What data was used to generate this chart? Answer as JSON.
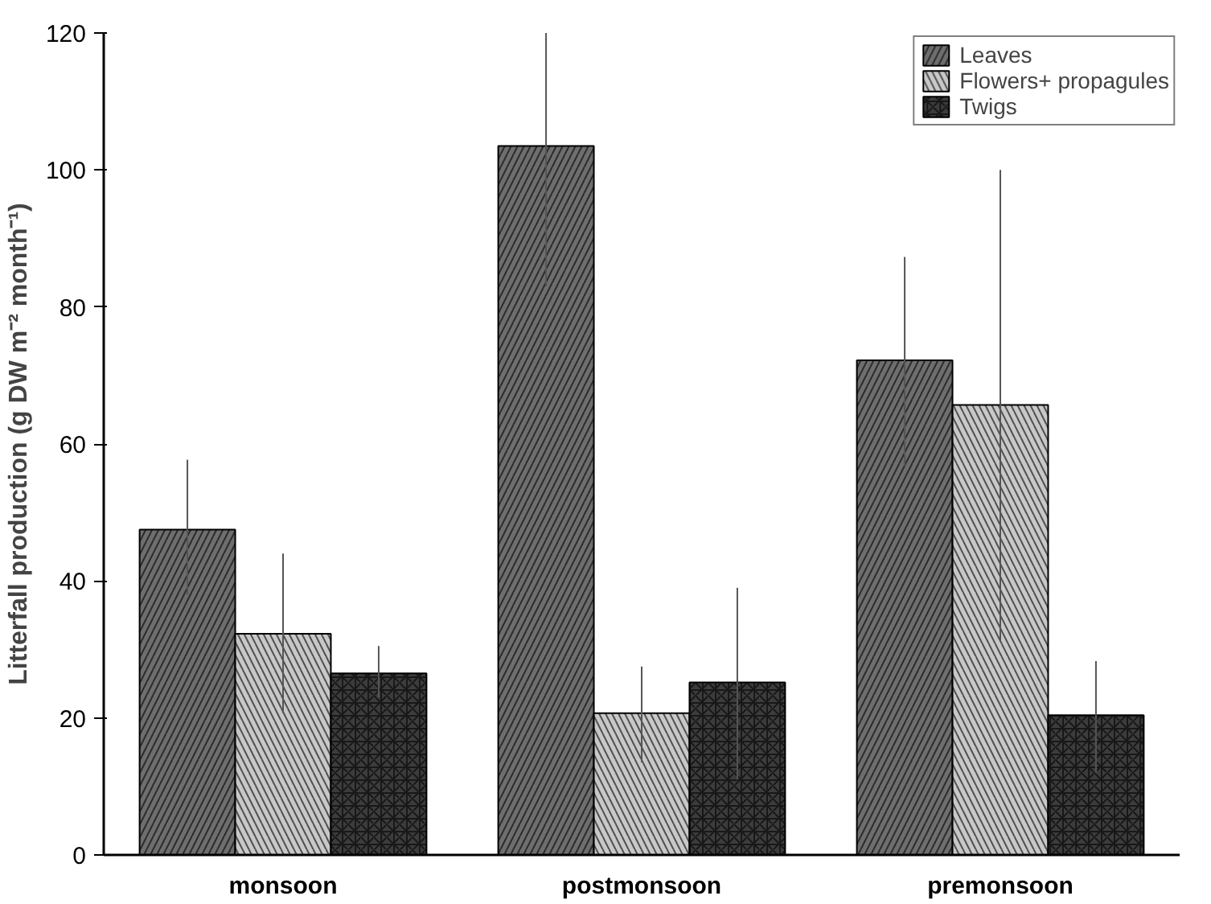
{
  "chart_data": {
    "type": "bar",
    "ylabel": "Litterfall production (g DW m⁻² month⁻¹)",
    "categories": [
      "monsoon",
      "postmonsoon",
      "premonsoon"
    ],
    "series": [
      {
        "name": "Leaves",
        "color": "#6e6e6e",
        "values": [
          47.5,
          103.5,
          72.2
        ],
        "errors": [
          [
            38,
            57.7
          ],
          [
            83,
            120
          ],
          [
            56.8,
            87.3
          ]
        ]
      },
      {
        "name": "Flowers+ propagules",
        "color": "#c8c8c8",
        "values": [
          32.3,
          20.7,
          65.7
        ],
        "errors": [
          [
            20.7,
            44
          ],
          [
            13.5,
            27.5
          ],
          [
            31.3,
            100
          ]
        ]
      },
      {
        "name": "Twigs",
        "color": "#3c3c3c",
        "values": [
          26.5,
          25.2,
          20.4
        ],
        "errors": [
          [
            23,
            30.5
          ],
          [
            11,
            39
          ],
          [
            12,
            28.3
          ]
        ]
      }
    ],
    "ylim": [
      0,
      120
    ],
    "yticks": [
      0,
      20,
      40,
      60,
      80,
      100,
      120
    ],
    "grid": false,
    "legend": "top right"
  }
}
